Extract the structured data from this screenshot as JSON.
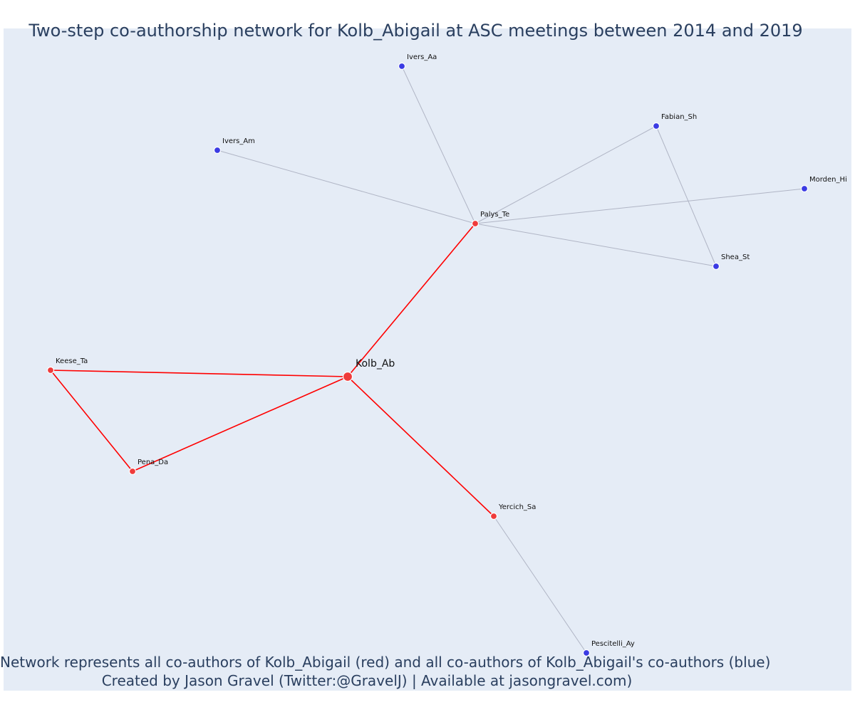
{
  "title": "Two-step co-authorship network for Kolb_Abigail at ASC meetings between 2014 and 2019",
  "footer": {
    "line1": "Network represents all co-authors of Kolb_Abigail (red) and all co-authors of Kolb_Abigail's co-authors (blue)",
    "line2": "Created by Jason Gravel (Twitter:@GravelJ) | Available at jasongravel.com)"
  },
  "colors": {
    "background": "#e5ecf6",
    "red_node": "#ef3b3b",
    "blue_node": "#3b3be3",
    "red_edge": "#ff0000",
    "grey_edge": "#b0b5c5",
    "text": "#2a3f5f"
  },
  "network": {
    "nodes": [
      {
        "id": "Kolb_Ab",
        "label": "Kolb_Ab",
        "group": "focal"
      },
      {
        "id": "Palys_Te",
        "label": "Palys_Te",
        "group": "coauthor"
      },
      {
        "id": "Keese_Ta",
        "label": "Keese_Ta",
        "group": "coauthor"
      },
      {
        "id": "Pena_Da",
        "label": "Pena_Da",
        "group": "coauthor"
      },
      {
        "id": "Yercich_Sa",
        "label": "Yercich_Sa",
        "group": "coauthor"
      },
      {
        "id": "Ivers_Aa",
        "label": "Ivers_Aa",
        "group": "second"
      },
      {
        "id": "Ivers_Am",
        "label": "Ivers_Am",
        "group": "second"
      },
      {
        "id": "Fabian_Sh",
        "label": "Fabian_Sh",
        "group": "second"
      },
      {
        "id": "Morden_Hi",
        "label": "Morden_Hi",
        "group": "second"
      },
      {
        "id": "Shea_St",
        "label": "Shea_St",
        "group": "second"
      },
      {
        "id": "Pescitelli_Ay",
        "label": "Pescitelli_Ay",
        "group": "second"
      }
    ],
    "edges": [
      {
        "source": "Kolb_Ab",
        "target": "Palys_Te",
        "type": "red"
      },
      {
        "source": "Kolb_Ab",
        "target": "Keese_Ta",
        "type": "red"
      },
      {
        "source": "Kolb_Ab",
        "target": "Pena_Da",
        "type": "red"
      },
      {
        "source": "Kolb_Ab",
        "target": "Yercich_Sa",
        "type": "red"
      },
      {
        "source": "Keese_Ta",
        "target": "Pena_Da",
        "type": "red"
      },
      {
        "source": "Palys_Te",
        "target": "Ivers_Aa",
        "type": "grey"
      },
      {
        "source": "Palys_Te",
        "target": "Ivers_Am",
        "type": "grey"
      },
      {
        "source": "Palys_Te",
        "target": "Fabian_Sh",
        "type": "grey"
      },
      {
        "source": "Palys_Te",
        "target": "Morden_Hi",
        "type": "grey"
      },
      {
        "source": "Palys_Te",
        "target": "Shea_St",
        "type": "grey"
      },
      {
        "source": "Fabian_Sh",
        "target": "Shea_St",
        "type": "grey"
      },
      {
        "source": "Yercich_Sa",
        "target": "Pescitelli_Ay",
        "type": "grey"
      }
    ]
  }
}
